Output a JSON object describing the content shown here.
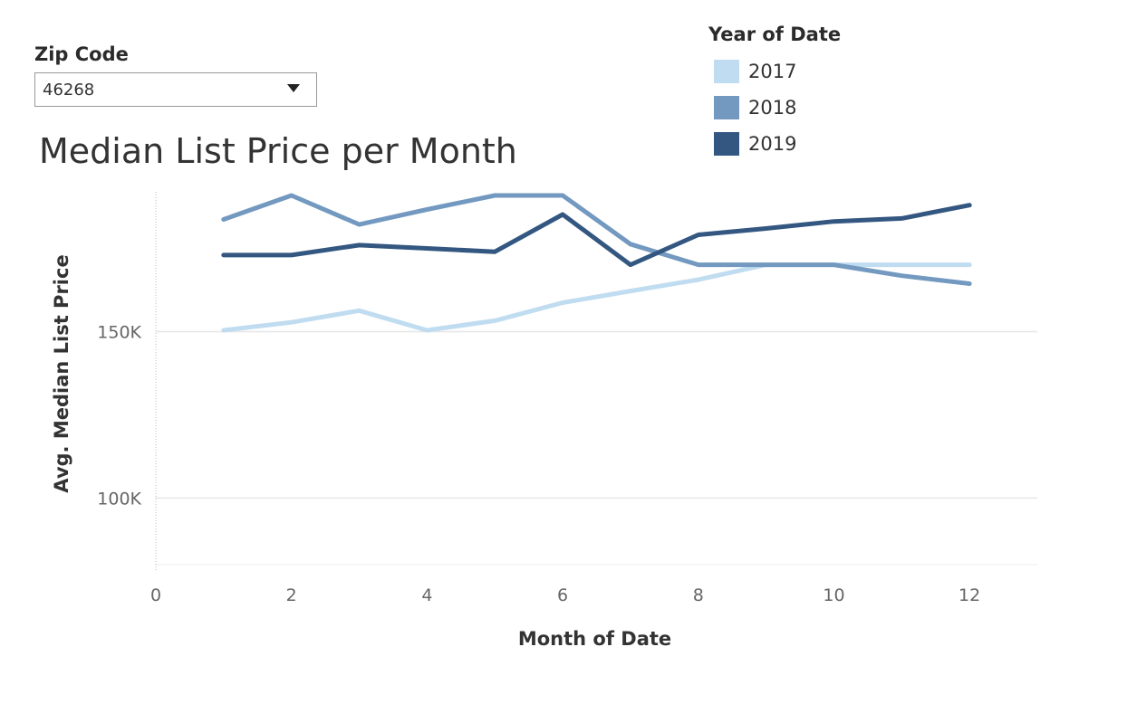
{
  "filter": {
    "label": "Zip Code",
    "value": "46268"
  },
  "legend": {
    "title": "Year of Date",
    "items": [
      {
        "label": "2017",
        "color": "#c0dcf0"
      },
      {
        "label": "2018",
        "color": "#7399c0"
      },
      {
        "label": "2019",
        "color": "#335780"
      }
    ]
  },
  "chart_data": {
    "type": "line",
    "title": "Median List Price per Month",
    "xlabel": "Month of Date",
    "ylabel": "Avg. Median List Price",
    "x": [
      1,
      2,
      3,
      4,
      5,
      6,
      7,
      8,
      9,
      10,
      11,
      12
    ],
    "xlim": [
      0,
      13
    ],
    "ylim": [
      80000,
      192000
    ],
    "xticks": [
      0,
      2,
      4,
      6,
      8,
      10,
      12
    ],
    "xtick_labels": [
      "0",
      "2",
      "4",
      "6",
      "8",
      "10",
      "12"
    ],
    "yticks": [
      100000,
      150000
    ],
    "ytick_labels": [
      "100K",
      "150K"
    ],
    "grid": true,
    "legend_position": "top-right",
    "series": [
      {
        "name": "2017",
        "color": "#c0dcf0",
        "values": [
          150400,
          152800,
          156300,
          150400,
          153300,
          158700,
          162200,
          165600,
          170100,
          170100,
          170100,
          170100
        ]
      },
      {
        "name": "2018",
        "color": "#7399c0",
        "values": [
          183700,
          190900,
          182200,
          186700,
          190900,
          190900,
          176300,
          170100,
          170100,
          170100,
          166800,
          164400
        ]
      },
      {
        "name": "2019",
        "color": "#335780",
        "values": [
          173000,
          173000,
          176000,
          175000,
          174000,
          185200,
          170100,
          179100,
          181000,
          183100,
          184000,
          188000
        ]
      }
    ]
  }
}
